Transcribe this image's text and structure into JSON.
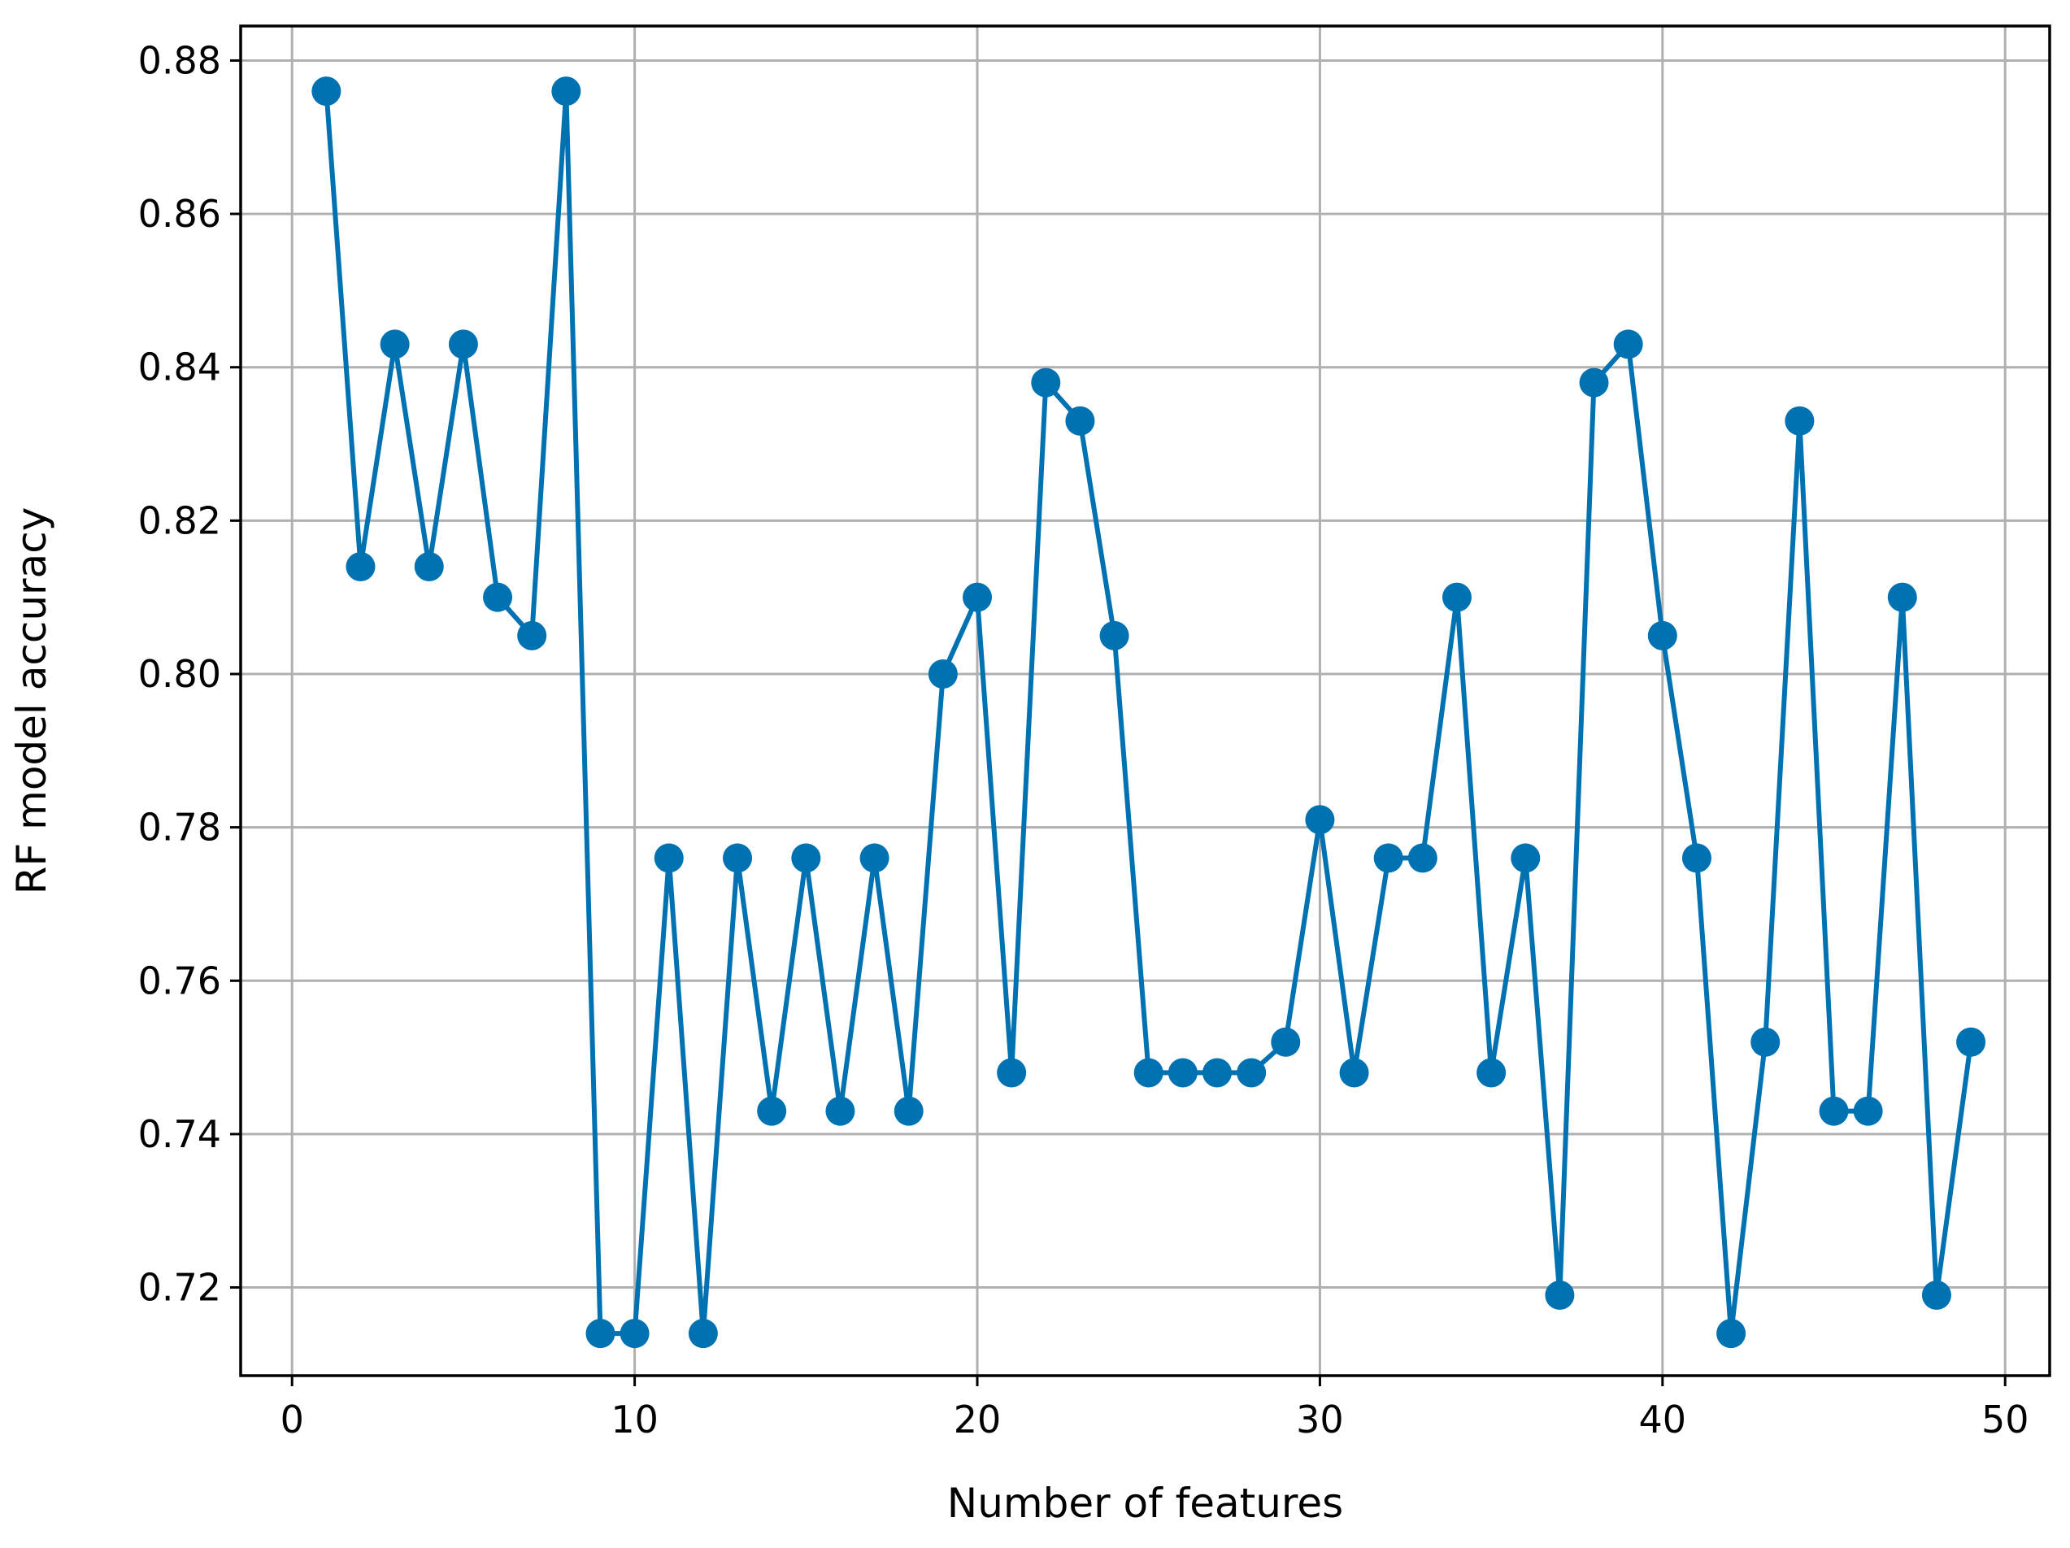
{
  "chart_data": {
    "type": "line",
    "title": "",
    "xlabel": "Number of features",
    "ylabel": "RF model accuracy",
    "xlim": [
      -1.5,
      51.3
    ],
    "ylim": [
      0.7085,
      0.8845
    ],
    "xticks": [
      0,
      10,
      20,
      30,
      40,
      50
    ],
    "yticks": [
      0.72,
      0.74,
      0.76,
      0.78,
      0.8,
      0.82,
      0.84,
      0.86,
      0.88
    ],
    "xtick_labels": [
      "0",
      "10",
      "20",
      "30",
      "40",
      "50"
    ],
    "ytick_labels": [
      "0.72",
      "0.74",
      "0.76",
      "0.78",
      "0.80",
      "0.82",
      "0.84",
      "0.86",
      "0.88"
    ],
    "grid": true,
    "legend": "none",
    "series": [
      {
        "color": "#0072b2",
        "marker": "circle",
        "x": [
          1,
          2,
          3,
          4,
          5,
          6,
          7,
          8,
          9,
          10,
          11,
          12,
          13,
          14,
          15,
          16,
          17,
          18,
          19,
          20,
          21,
          22,
          23,
          24,
          25,
          26,
          27,
          28,
          29,
          30,
          31,
          32,
          33,
          34,
          35,
          36,
          37,
          38,
          39,
          40,
          41,
          42,
          43,
          44,
          45,
          46,
          47,
          48,
          49
        ],
        "y": [
          0.876,
          0.814,
          0.843,
          0.814,
          0.843,
          0.81,
          0.805,
          0.876,
          0.714,
          0.714,
          0.776,
          0.714,
          0.776,
          0.743,
          0.776,
          0.743,
          0.776,
          0.743,
          0.8,
          0.81,
          0.748,
          0.838,
          0.833,
          0.805,
          0.748,
          0.748,
          0.748,
          0.748,
          0.752,
          0.781,
          0.748,
          0.776,
          0.776,
          0.81,
          0.748,
          0.776,
          0.719,
          0.838,
          0.843,
          0.805,
          0.776,
          0.714,
          0.752,
          0.833,
          0.743,
          0.743,
          0.81,
          0.719,
          0.752
        ]
      }
    ]
  }
}
